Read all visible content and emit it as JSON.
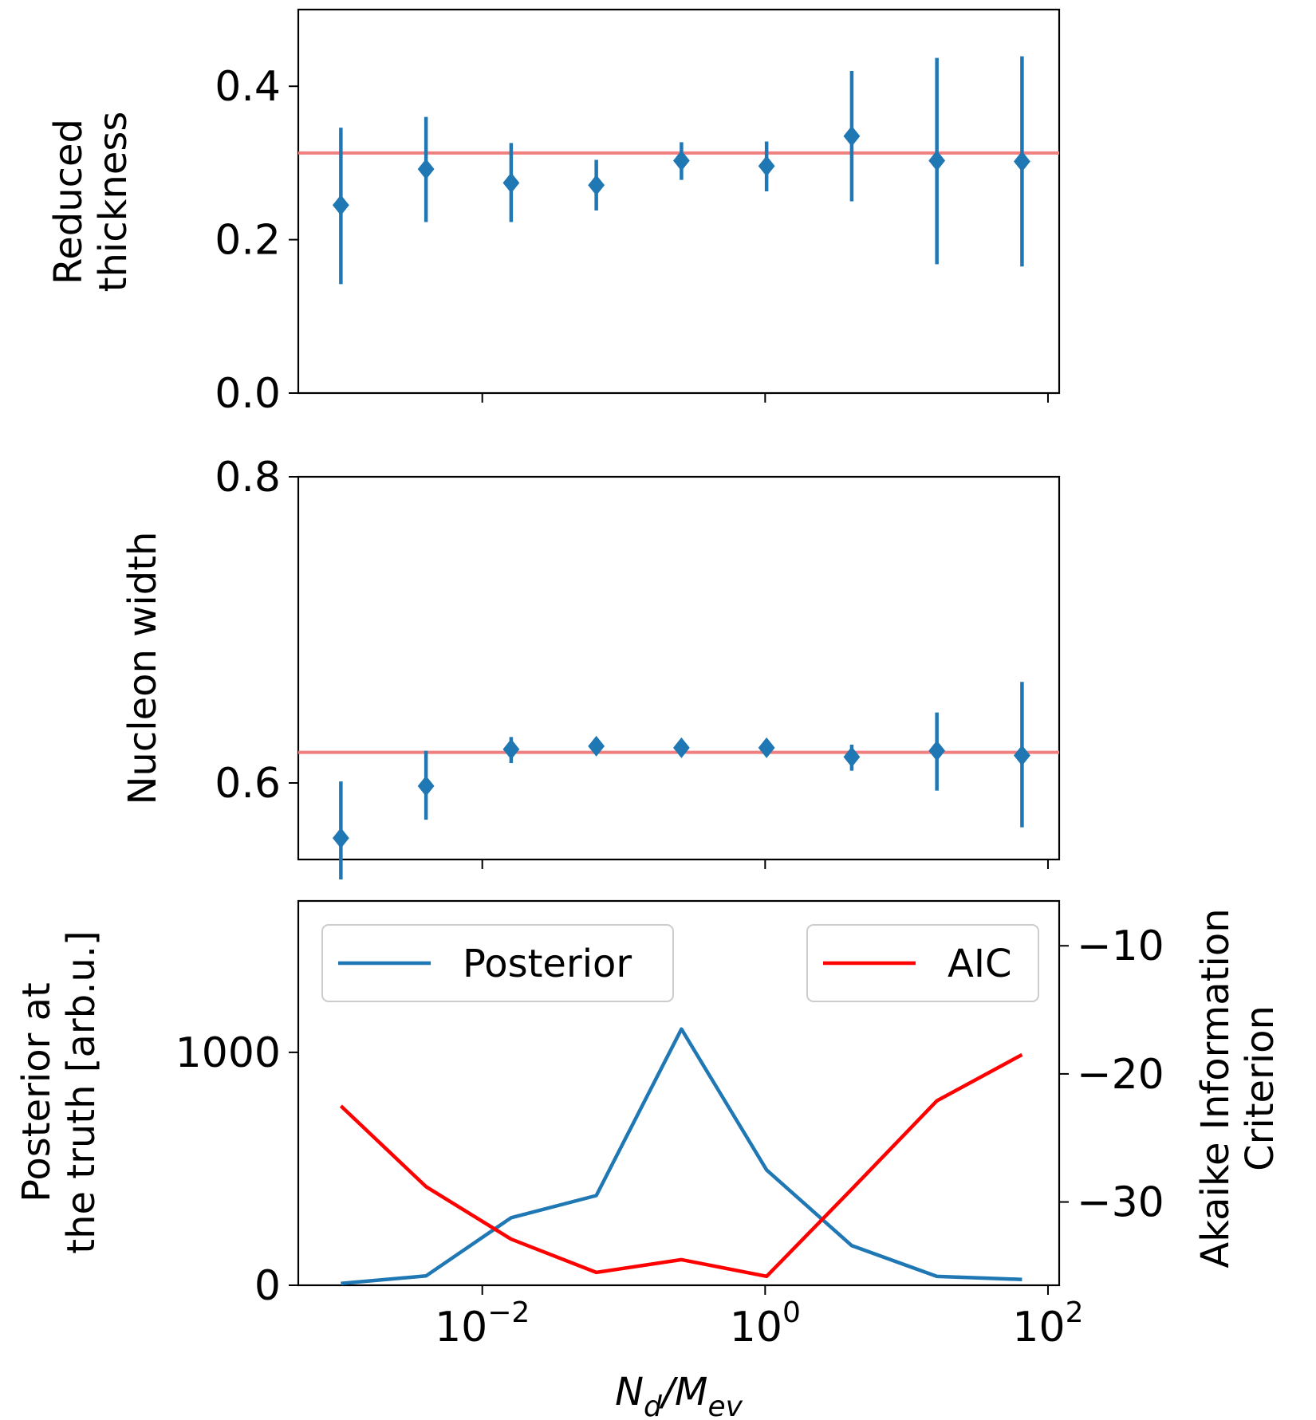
{
  "chart_data": [
    {
      "type": "scatter",
      "ylabel_lines": [
        "Reduced",
        "thickness"
      ],
      "xscale": "log",
      "xlim": [
        0.0005,
        120
      ],
      "ylim": [
        0.0,
        0.5
      ],
      "yticks": [
        0.0,
        0.2,
        0.4
      ],
      "ytick_labels": [
        "0.0",
        "0.2",
        "0.4"
      ],
      "truth_line": 0.313,
      "x": [
        0.001,
        0.004,
        0.016,
        0.064,
        0.256,
        1.024,
        4.096,
        16.384,
        65.536
      ],
      "y": [
        0.245,
        0.292,
        0.274,
        0.271,
        0.303,
        0.296,
        0.335,
        0.303,
        0.302
      ],
      "yerr_low": [
        0.142,
        0.223,
        0.223,
        0.238,
        0.278,
        0.263,
        0.25,
        0.168,
        0.165
      ],
      "yerr_high": [
        0.346,
        0.36,
        0.326,
        0.304,
        0.327,
        0.328,
        0.42,
        0.437,
        0.439
      ],
      "colors": {
        "points": "#1f77b4",
        "truth": "#f08080"
      }
    },
    {
      "type": "scatter",
      "ylabel": "Nucleon width",
      "xscale": "log",
      "xlim": [
        0.0005,
        120
      ],
      "ylim": [
        0.55,
        0.8
      ],
      "yticks": [
        0.6,
        0.8
      ],
      "ytick_labels": [
        "0.6",
        "0.8"
      ],
      "truth_line": 0.62,
      "x": [
        0.001,
        0.004,
        0.016,
        0.064,
        0.256,
        1.024,
        4.096,
        16.384,
        65.536
      ],
      "y": [
        0.564,
        0.598,
        0.622,
        0.624,
        0.623,
        0.623,
        0.617,
        0.621,
        0.618
      ],
      "yerr_low": [
        0.537,
        0.576,
        0.613,
        0.624,
        0.623,
        0.623,
        0.608,
        0.595,
        0.571
      ],
      "yerr_high": [
        0.601,
        0.621,
        0.63,
        0.624,
        0.623,
        0.623,
        0.625,
        0.646,
        0.666
      ],
      "colors": {
        "points": "#1f77b4",
        "truth": "#f08080"
      }
    },
    {
      "type": "line",
      "ylabel_lines": [
        "Posterior at",
        "the truth [arb.u.]"
      ],
      "y2label_lines": [
        "Akaike Information",
        "Criterion"
      ],
      "xlabel": "N_d/M_ev",
      "xscale": "log",
      "xlim": [
        0.0005,
        120
      ],
      "xticks": [
        0.01,
        1,
        100
      ],
      "xtick_labels": [
        {
          "base": "10",
          "exp": "−2"
        },
        {
          "base": "10",
          "exp": "0"
        },
        {
          "base": "10",
          "exp": "2"
        }
      ],
      "ylim": [
        0,
        1650
      ],
      "yticks": [
        0,
        1000
      ],
      "ytick_labels": [
        "0",
        "1000"
      ],
      "y2lim": [
        -36.5,
        -6.5
      ],
      "y2ticks": [
        -10,
        -20,
        -30
      ],
      "y2tick_labels": [
        "−10",
        "−20",
        "−30"
      ],
      "x": [
        0.001,
        0.004,
        0.016,
        0.064,
        0.256,
        1.024,
        4.096,
        16.384,
        65.536
      ],
      "series": [
        {
          "name": "Posterior",
          "axis": "left",
          "color": "#1f77b4",
          "values": [
            8,
            40,
            290,
            385,
            1100,
            495,
            170,
            38,
            25
          ]
        },
        {
          "name": "AIC",
          "axis": "right",
          "color": "#ff0000",
          "values": [
            -22.5,
            -28.8,
            -32.9,
            -35.5,
            -34.5,
            -35.8,
            -29.0,
            -22.1,
            -18.5
          ]
        }
      ]
    }
  ]
}
